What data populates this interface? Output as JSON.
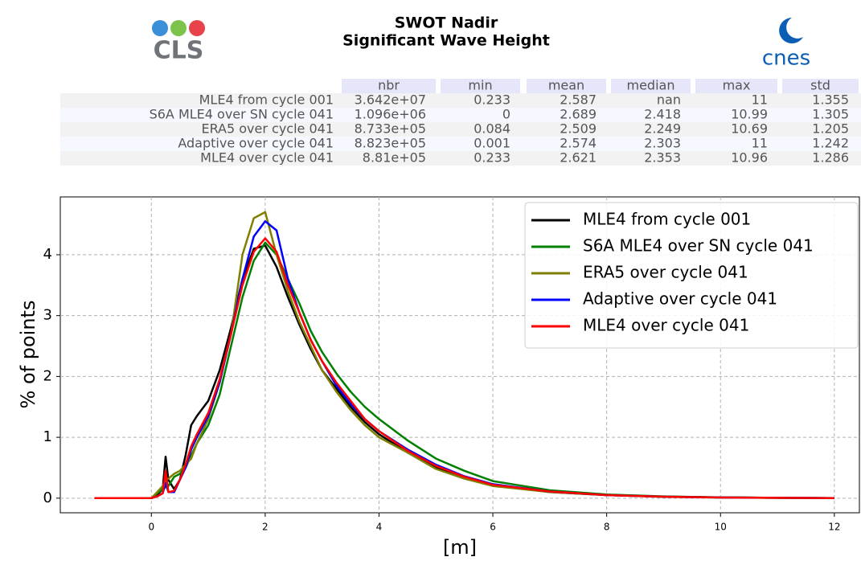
{
  "logos": {
    "left": "CLS",
    "right": "cnes"
  },
  "table": {
    "columns": [
      "nbr",
      "min",
      "mean",
      "median",
      "max",
      "std"
    ],
    "rows": [
      {
        "label": "MLE4 from cycle 001",
        "cells": [
          "3.642e+07",
          "0.233",
          "2.587",
          "nan",
          "11",
          "1.355"
        ]
      },
      {
        "label": "S6A MLE4 over SN cycle 041",
        "cells": [
          "1.096e+06",
          "0",
          "2.689",
          "2.418",
          "10.99",
          "1.305"
        ]
      },
      {
        "label": "ERA5 over cycle 041",
        "cells": [
          "8.733e+05",
          "0.084",
          "2.509",
          "2.249",
          "10.69",
          "1.205"
        ]
      },
      {
        "label": "Adaptive over cycle 041",
        "cells": [
          "8.823e+05",
          "0.001",
          "2.574",
          "2.303",
          "11",
          "1.242"
        ]
      },
      {
        "label": "MLE4 over cycle 041",
        "cells": [
          "8.81e+05",
          "0.233",
          "2.621",
          "2.353",
          "10.96",
          "1.286"
        ]
      }
    ]
  },
  "chart_data": {
    "type": "line",
    "title": "SWOT Nadir",
    "subtitle": "Significant Wave Height",
    "x_label": "[m]",
    "y_label": "% of points",
    "x": [
      -1,
      0,
      0.1,
      0.2,
      0.25,
      0.3,
      0.4,
      0.5,
      0.6,
      0.7,
      0.8,
      1,
      1.2,
      1.4,
      1.6,
      1.8,
      2,
      2.2,
      2.4,
      2.6,
      2.8,
      3,
      3.25,
      3.5,
      3.75,
      4,
      4.5,
      5,
      5.5,
      6,
      7,
      8,
      9,
      10,
      11,
      12
    ],
    "series": [
      {
        "name": "MLE4 from cycle 001",
        "color": "#000000",
        "values": [
          0,
          0,
          0.05,
          0.15,
          0.68,
          0.3,
          0.15,
          0.3,
          0.7,
          1.2,
          1.35,
          1.6,
          2.1,
          2.8,
          3.6,
          4.1,
          4.15,
          3.8,
          3.3,
          2.85,
          2.45,
          2.1,
          1.8,
          1.5,
          1.25,
          1.05,
          0.75,
          0.5,
          0.33,
          0.22,
          0.1,
          0.05,
          0.025,
          0.012,
          0.005,
          0
        ]
      },
      {
        "name": "S6A MLE4 over SN cycle 041",
        "color": "#008000",
        "values": [
          0,
          0,
          0.08,
          0.15,
          0.18,
          0.2,
          0.35,
          0.4,
          0.5,
          0.7,
          0.9,
          1.2,
          1.7,
          2.5,
          3.3,
          3.9,
          4.2,
          4.0,
          3.6,
          3.2,
          2.75,
          2.4,
          2.05,
          1.75,
          1.5,
          1.3,
          0.95,
          0.65,
          0.45,
          0.28,
          0.13,
          0.06,
          0.03,
          0.014,
          0.006,
          0
        ]
      },
      {
        "name": "ERA5 over cycle 041",
        "color": "#808000",
        "values": [
          0,
          0,
          0.1,
          0.2,
          0.3,
          0.32,
          0.4,
          0.45,
          0.55,
          0.65,
          0.9,
          1.3,
          1.9,
          2.7,
          4.0,
          4.6,
          4.7,
          4.0,
          3.4,
          2.9,
          2.5,
          2.1,
          1.75,
          1.45,
          1.2,
          1.0,
          0.75,
          0.48,
          0.32,
          0.2,
          0.1,
          0.05,
          0.02,
          0.01,
          0.004,
          0
        ]
      },
      {
        "name": "Adaptive over cycle 041",
        "color": "#0000ff",
        "values": [
          0,
          0,
          0.03,
          0.08,
          0.25,
          0.1,
          0.1,
          0.3,
          0.5,
          0.8,
          1.0,
          1.35,
          1.9,
          2.7,
          3.6,
          4.3,
          4.55,
          4.4,
          3.6,
          3.05,
          2.6,
          2.25,
          1.85,
          1.55,
          1.3,
          1.1,
          0.8,
          0.55,
          0.36,
          0.23,
          0.11,
          0.05,
          0.024,
          0.011,
          0.005,
          0
        ]
      },
      {
        "name": "MLE4 over cycle 041",
        "color": "#ff0000",
        "values": [
          0,
          0,
          0.03,
          0.08,
          0.45,
          0.1,
          0.12,
          0.3,
          0.55,
          0.85,
          1.05,
          1.4,
          1.95,
          2.7,
          3.5,
          4.05,
          4.27,
          4.05,
          3.5,
          3.05,
          2.6,
          2.25,
          1.9,
          1.6,
          1.3,
          1.1,
          0.78,
          0.53,
          0.35,
          0.22,
          0.11,
          0.05,
          0.024,
          0.011,
          0.005,
          0
        ]
      }
    ],
    "xlim": [
      -1.6,
      12.44
    ],
    "ylim": [
      -0.24,
      4.95
    ],
    "xticks": [
      0,
      2,
      4,
      6,
      8,
      10,
      12
    ],
    "yticks": [
      0,
      1,
      2,
      3,
      4
    ],
    "grid": true,
    "legend": "upper right"
  }
}
